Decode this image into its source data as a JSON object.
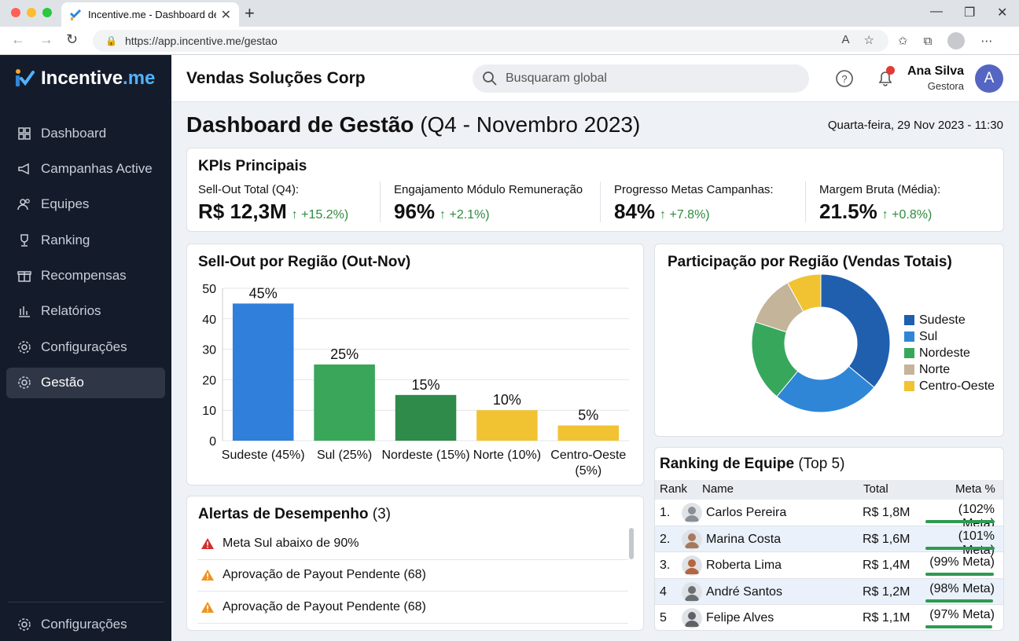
{
  "browser": {
    "tab_title": "Incentive.me - Dashboard de G",
    "url": "https://app.incentive.me/gestao"
  },
  "sidebar": {
    "logo_main": "Incentive",
    "logo_suffix": ".me",
    "items": [
      {
        "label": "Dashboard",
        "icon": "grid-icon"
      },
      {
        "label": "Campanhas Active",
        "icon": "megaphone-icon"
      },
      {
        "label": "Equipes",
        "icon": "users-icon"
      },
      {
        "label": "Ranking",
        "icon": "trophy-icon"
      },
      {
        "label": "Recompensas",
        "icon": "gift-icon"
      },
      {
        "label": "Relatórios",
        "icon": "bar-chart-icon"
      },
      {
        "label": "Configurações",
        "icon": "gear-icon"
      },
      {
        "label": "Gestão",
        "icon": "gear-icon",
        "active": true
      }
    ],
    "bottom_item": "Configurações"
  },
  "header": {
    "company": "Vendas Soluções Corp",
    "search_placeholder": "Busquaram global",
    "user_name": "Ana Silva",
    "user_role": "Gestora",
    "avatar_initial": "A"
  },
  "page": {
    "title_bold": "Dashboard de Gestão",
    "title_rest": "(Q4 - Novembro 2023)",
    "date": "Quarta-feira, 29 Nov 2023 - 11:30"
  },
  "kpis": {
    "title": "KPIs Principais",
    "items": [
      {
        "label": "Sell-Out Total (Q4):",
        "value": "R$ 12,3M",
        "delta": "↑ +15.2%)"
      },
      {
        "label": "Engajamento Módulo Remuneração",
        "value": "96%",
        "delta": "↑ +2.1%)"
      },
      {
        "label": "Progresso Metas Campanhas:",
        "value": "84%",
        "delta": "↑ +7.8%)"
      },
      {
        "label": "Margem Bruta (Média):",
        "value": "21.5%",
        "delta": "↑ +0.8%)"
      }
    ]
  },
  "chart_data": [
    {
      "type": "bar",
      "title": "Sell-Out por Região (Out-Nov)",
      "categories": [
        "Sudeste (45%)",
        "Sul (25%)",
        "Nordeste (15%)",
        "Norte (10%)",
        "Centro-Oeste (5%)"
      ],
      "values": [
        45,
        25,
        15,
        10,
        5
      ],
      "data_labels": [
        "45%",
        "25%",
        "15%",
        "10%",
        "5%"
      ],
      "colors": [
        "#2f7fdb",
        "#3aa65a",
        "#2e8b4a",
        "#f1c232",
        "#f1c232"
      ],
      "yticks": [
        0,
        10,
        20,
        30,
        40,
        50
      ],
      "ylim": [
        0,
        50
      ],
      "grid": true,
      "xlabel": "",
      "ylabel": ""
    },
    {
      "type": "pie",
      "title": "Participação por Região (Vendas Totais)",
      "donut": true,
      "legend_position": "right",
      "labels": [
        "Sudeste",
        "Sul",
        "Nordeste",
        "Norte",
        "Centro-Oeste"
      ],
      "values": [
        36,
        25,
        19,
        12,
        8
      ],
      "colors": [
        "#1f5fae",
        "#2f86d6",
        "#37a75c",
        "#c3b49a",
        "#f1c232"
      ]
    }
  ],
  "alerts": {
    "title_bold": "Alertas de Desempenho",
    "title_count": "(3)",
    "items": [
      {
        "text": "Meta Sul abaixo de 90%",
        "level": "danger",
        "icon": "warning-red-icon"
      },
      {
        "text": "Aprovação de Payout Pendente (68)",
        "level": "warning",
        "icon": "warning-orange-icon"
      },
      {
        "text": "Aprovação de Payout Pendente (68)",
        "level": "warning",
        "icon": "warning-orange-icon"
      }
    ]
  },
  "ranking": {
    "title_bold": "Ranking de Equipe",
    "title_rest": "(Top 5)",
    "columns": [
      "Rank",
      "Name",
      "Total",
      "Meta %"
    ],
    "rows": [
      {
        "rank": "1.",
        "name": "Carlos Pereira",
        "total": "R$ 1,8M",
        "meta": "(102% Meta)",
        "progress": 1.02
      },
      {
        "rank": "2.",
        "name": "Marina Costa",
        "total": "R$ 1,6M",
        "meta": "(101% Meta)",
        "progress": 1.01
      },
      {
        "rank": "3.",
        "name": "Roberta Lima",
        "total": "R$ 1,4M",
        "meta": "(99% Meta)",
        "progress": 0.99
      },
      {
        "rank": "4",
        "name": "André Santos",
        "total": "R$ 1,2M",
        "meta": "(98% Meta)",
        "progress": 0.98
      },
      {
        "rank": "5",
        "name": "Felipe Alves",
        "total": "R$ 1,1M",
        "meta": "(97% Meta)",
        "progress": 0.97
      }
    ]
  }
}
